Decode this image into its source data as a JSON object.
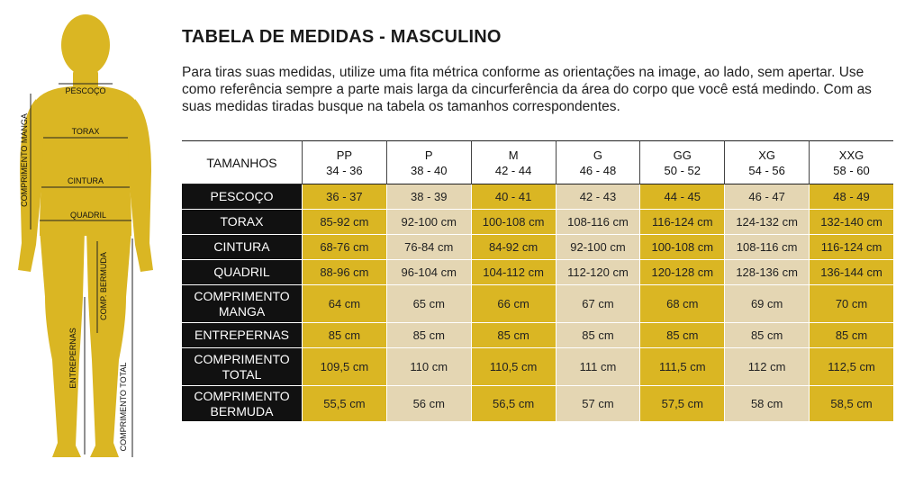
{
  "title": "TABELA DE MEDIDAS - MASCULINO",
  "intro": "Para tiras suas medidas, utilize uma fita métrica conforme as orientações na image, ao lado, sem apertar. Use como referência sempre a parte mais larga da cincurferência da área do corpo que você está medindo. Com as suas medidas tiradas busque na tabela os tamanhos correspondentes.",
  "figure": {
    "labels": {
      "pescoco": "PESCOÇO",
      "torax": "TORAX",
      "cintura": "CINTURA",
      "quadril": "QUADRIL",
      "comprimento_manga": "COMPRIMENTO MANGA",
      "comp_bermuda": "COMP. BERMUDA",
      "entrepernas": "ENTREPERNAS",
      "comprimento_total": "COMPRIMENTO TOTAL"
    }
  },
  "colors": {
    "gold": "#dab623",
    "beige": "#e4d6b3",
    "row_header_bg": "#111111",
    "figure": "#dab623"
  },
  "table": {
    "header_label": "TAMANHOS",
    "sizes": [
      {
        "name": "PP",
        "range": "34 - 36"
      },
      {
        "name": "P",
        "range": "38 - 40"
      },
      {
        "name": "M",
        "range": "42 - 44"
      },
      {
        "name": "G",
        "range": "46 - 48"
      },
      {
        "name": "GG",
        "range": "50 - 52"
      },
      {
        "name": "XG",
        "range": "54 - 56"
      },
      {
        "name": "XXG",
        "range": "58 - 60"
      }
    ],
    "rows": [
      {
        "label_1": "PESCOÇO",
        "label_2": "",
        "values": [
          "36 - 37",
          "38 - 39",
          "40 - 41",
          "42 - 43",
          "44 - 45",
          "46 - 47",
          "48 - 49"
        ]
      },
      {
        "label_1": "TORAX",
        "label_2": "",
        "values": [
          "85-92 cm",
          "92-100 cm",
          "100-108 cm",
          "108-116 cm",
          "116-124 cm",
          "124-132 cm",
          "132-140 cm"
        ]
      },
      {
        "label_1": "CINTURA",
        "label_2": "",
        "values": [
          "68-76 cm",
          "76-84 cm",
          "84-92 cm",
          "92-100 cm",
          "100-108 cm",
          "108-116 cm",
          "116-124 cm"
        ]
      },
      {
        "label_1": "QUADRIL",
        "label_2": "",
        "values": [
          "88-96 cm",
          "96-104 cm",
          "104-112 cm",
          "112-120 cm",
          "120-128 cm",
          "128-136 cm",
          "136-144 cm"
        ]
      },
      {
        "label_1": "COMPRIMENTO",
        "label_2": "MANGA",
        "values": [
          "64 cm",
          "65 cm",
          "66 cm",
          "67 cm",
          "68 cm",
          "69 cm",
          "70 cm"
        ]
      },
      {
        "label_1": "ENTREPERNAS",
        "label_2": "",
        "values": [
          "85 cm",
          "85 cm",
          "85 cm",
          "85 cm",
          "85 cm",
          "85 cm",
          "85 cm"
        ]
      },
      {
        "label_1": "COMPRIMENTO",
        "label_2": "TOTAL",
        "values": [
          "109,5 cm",
          "110 cm",
          "110,5 cm",
          "111 cm",
          "111,5 cm",
          "112 cm",
          "112,5 cm"
        ]
      },
      {
        "label_1": "COMPRIMENTO",
        "label_2": "BERMUDA",
        "values": [
          "55,5 cm",
          "56 cm",
          "56,5 cm",
          "57 cm",
          "57,5 cm",
          "58 cm",
          "58,5 cm"
        ]
      }
    ]
  }
}
